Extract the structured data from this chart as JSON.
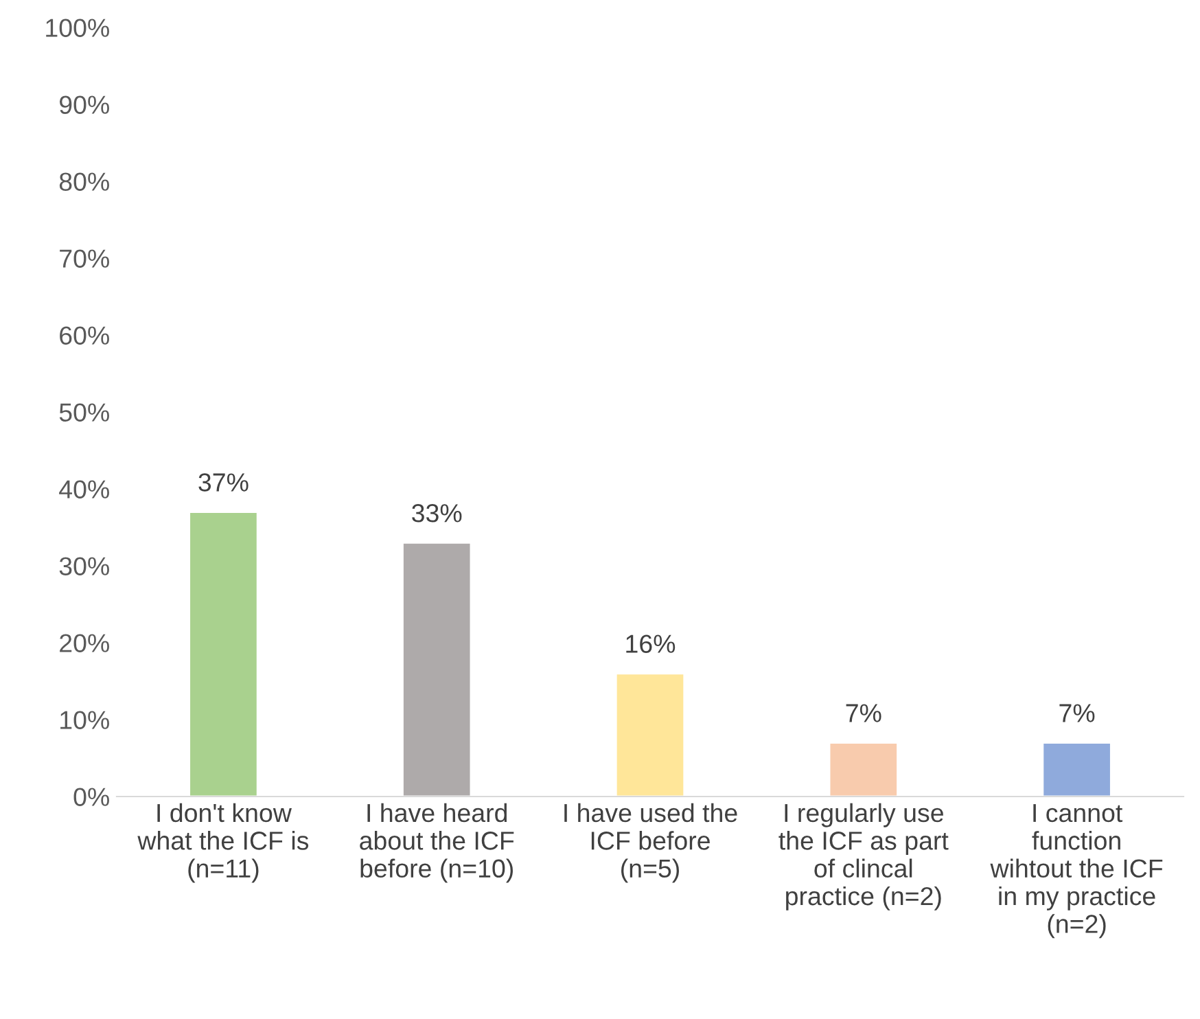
{
  "chart_data": {
    "type": "bar",
    "categories": [
      "I don't know\nwhat the ICF is\n(n=11)",
      "I have heard\nabout the ICF\nbefore (n=10)",
      "I have used the\nICF before\n(n=5)",
      "I regularly use\nthe ICF as part\nof clincal\npractice (n=2)",
      "I cannot\nfunction\nwihtout the ICF\nin my practice\n(n=2)"
    ],
    "values": [
      37,
      33,
      16,
      7,
      7
    ],
    "colors": [
      "#a9d18e",
      "#aeaaaa",
      "#ffe699",
      "#f8cbad",
      "#8faadc"
    ],
    "value_labels": [
      "37%",
      "33%",
      "16%",
      "7%",
      "7%"
    ],
    "ylim": [
      0,
      100
    ],
    "yticks": [
      {
        "value": 0,
        "label": "0%"
      },
      {
        "value": 10,
        "label": "10%"
      },
      {
        "value": 20,
        "label": "20%"
      },
      {
        "value": 30,
        "label": "30%"
      },
      {
        "value": 40,
        "label": "40%"
      },
      {
        "value": 50,
        "label": "50%"
      },
      {
        "value": 60,
        "label": "60%"
      },
      {
        "value": 70,
        "label": "70%"
      },
      {
        "value": 80,
        "label": "80%"
      },
      {
        "value": 90,
        "label": "90%"
      },
      {
        "value": 100,
        "label": "100%"
      }
    ],
    "grid": false,
    "legend": false
  }
}
